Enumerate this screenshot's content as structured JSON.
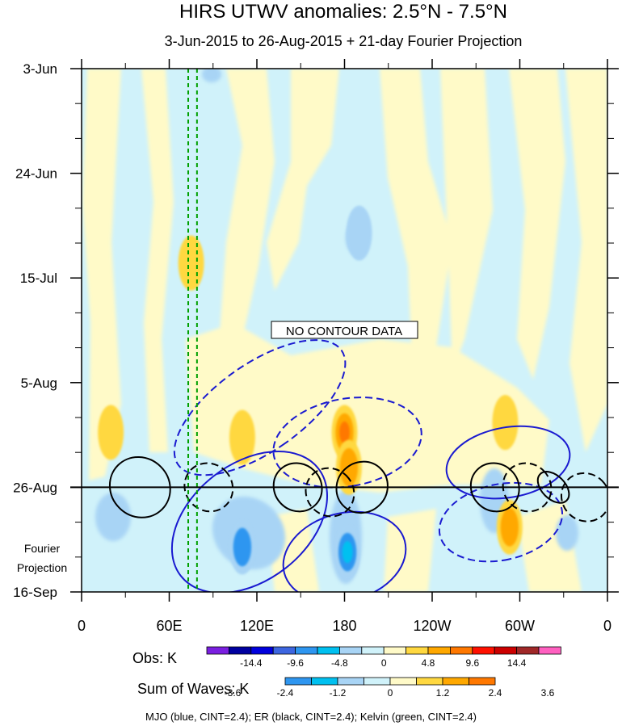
{
  "chart_data": {
    "type": "heatmap",
    "title": "HIRS UTWV anomalies: 2.5°N - 7.5°N",
    "subtitle": "3-Jun-2015 to 26-Aug-2015 + 21-day Fourier Projection",
    "x_axis": {
      "quantity": "longitude",
      "range_deg_east": [
        0,
        360
      ],
      "ticks": [
        {
          "lon": 0,
          "label": "0"
        },
        {
          "lon": 60,
          "label": "60E"
        },
        {
          "lon": 120,
          "label": "120E"
        },
        {
          "lon": 180,
          "label": "180"
        },
        {
          "lon": 240,
          "label": "120W"
        },
        {
          "lon": 300,
          "label": "60W"
        },
        {
          "lon": 360,
          "label": "0"
        }
      ]
    },
    "y_axis": {
      "quantity": "time (days since 3-Jun-2015)",
      "range_days": [
        0,
        105
      ],
      "ticks": [
        {
          "day": 0,
          "label": "3-Jun"
        },
        {
          "day": 21,
          "label": "24-Jun"
        },
        {
          "day": 42,
          "label": "15-Jul"
        },
        {
          "day": 63,
          "label": "5-Aug"
        },
        {
          "day": 84,
          "label": "26-Aug"
        },
        {
          "day": 105,
          "label": "16-Sep"
        }
      ],
      "minor_tick_step_days": 7,
      "forecast_boundary_day": 84,
      "forecast_label": "Fourier Projection"
    },
    "no_data_label": "NO CONTOUR DATA",
    "green_guides_lon": [
      73,
      79
    ],
    "obs_colorbar": {
      "label": "Obs: K",
      "tick_labels": [
        "-14.4",
        "-9.6",
        "-4.8",
        "0",
        "4.8",
        "9.6",
        "14.4"
      ],
      "colors": [
        "#7a1fe0",
        "#0000a0",
        "#0000dd",
        "#3d66e0",
        "#2e96f0",
        "#00c0f0",
        "#a8d4f5",
        "#d0f2fa",
        "#fffac8",
        "#ffd840",
        "#ffa800",
        "#ff7800",
        "#ff1000",
        "#cc0000",
        "#a02828",
        "#ff60c0"
      ]
    },
    "waves_colorbar": {
      "label": "Sum of Waves: K",
      "tick_labels": [
        "-3.6",
        "-2.4",
        "-1.2",
        "0",
        "1.2",
        "2.4",
        "3.6"
      ],
      "colors": [
        "#2e96f0",
        "#00c0f0",
        "#a8d4f5",
        "#d0f2fa",
        "#fffac8",
        "#ffd840",
        "#ffa800",
        "#ff7800"
      ]
    },
    "anomaly_features": [
      {
        "lon": 180,
        "day": 73,
        "sign": "positive",
        "level": 3
      },
      {
        "lon": 183,
        "day": 80,
        "sign": "positive",
        "level": 2
      },
      {
        "lon": 110,
        "day": 74,
        "sign": "positive",
        "level": 1
      },
      {
        "lon": 20,
        "day": 73,
        "sign": "positive",
        "level": 1
      },
      {
        "lon": 290,
        "day": 71,
        "sign": "positive",
        "level": 1
      },
      {
        "lon": 110,
        "day": 96,
        "sign": "negative",
        "level": 2
      },
      {
        "lon": 182,
        "day": 97,
        "sign": "negative",
        "level": 3
      },
      {
        "lon": 75,
        "day": 39,
        "sign": "positive",
        "level": 1
      },
      {
        "lon": 190,
        "day": 33,
        "sign": "negative",
        "level": 1
      },
      {
        "lon": 293,
        "day": 92,
        "sign": "positive",
        "level": 2
      }
    ],
    "wave_contours": [
      {
        "wave": "MJO",
        "style": "dashed",
        "lon": 122,
        "day": 68,
        "rx_deg": 30,
        "ry_days": 8,
        "tilt_deg": 55
      },
      {
        "wave": "MJO",
        "style": "solid",
        "lon": 115,
        "day": 91,
        "rx_deg": 40,
        "ry_days": 7,
        "tilt_deg": 52
      },
      {
        "wave": "MJO",
        "style": "dashed",
        "lon": 182,
        "day": 75,
        "rx_deg": 30,
        "ry_days": 6,
        "tilt_deg": 80
      },
      {
        "wave": "MJO",
        "style": "solid",
        "lon": 180,
        "day": 98,
        "rx_deg": 30,
        "ry_days": 5,
        "tilt_deg": 75
      },
      {
        "wave": "MJO",
        "style": "solid",
        "lon": 292,
        "day": 79,
        "rx_deg": 24,
        "ry_days": 5,
        "tilt_deg": 80
      },
      {
        "wave": "MJO",
        "style": "dashed",
        "lon": 287,
        "day": 91,
        "rx_deg": 26,
        "ry_days": 5,
        "tilt_deg": 78
      },
      {
        "wave": "ER",
        "style": "solid",
        "lon": 40,
        "day": 84,
        "rx_deg": 20,
        "ry_days": 2.5,
        "tilt_deg": -45
      },
      {
        "wave": "ER",
        "style": "dashed",
        "lon": 87,
        "day": 84,
        "rx_deg": 16,
        "ry_days": 2,
        "tilt_deg": -45
      },
      {
        "wave": "ER",
        "style": "solid",
        "lon": 148,
        "day": 84,
        "rx_deg": 16,
        "ry_days": 2,
        "tilt_deg": -45
      },
      {
        "wave": "ER",
        "style": "dashed",
        "lon": 170,
        "day": 85,
        "rx_deg": 16,
        "ry_days": 2,
        "tilt_deg": -45
      },
      {
        "wave": "ER",
        "style": "solid",
        "lon": 192,
        "day": 84,
        "rx_deg": 18,
        "ry_days": 2,
        "tilt_deg": -45
      },
      {
        "wave": "ER",
        "style": "solid",
        "lon": 283,
        "day": 84,
        "rx_deg": 16,
        "ry_days": 2,
        "tilt_deg": -45
      },
      {
        "wave": "ER",
        "style": "dashed",
        "lon": 305,
        "day": 84,
        "rx_deg": 16,
        "ry_days": 2,
        "tilt_deg": -45
      },
      {
        "wave": "ER",
        "style": "solid",
        "lon": 323,
        "day": 84,
        "rx_deg": 8,
        "ry_days": 1.5,
        "tilt_deg": -45
      },
      {
        "wave": "ER",
        "style": "dashed",
        "lon": 345,
        "day": 86,
        "rx_deg": 16,
        "ry_days": 2,
        "tilt_deg": -45
      }
    ],
    "legend_text": "MJO (blue, CINT=2.4); ER (black, CINT=2.4); Kelvin (green, CINT=2.4)"
  }
}
